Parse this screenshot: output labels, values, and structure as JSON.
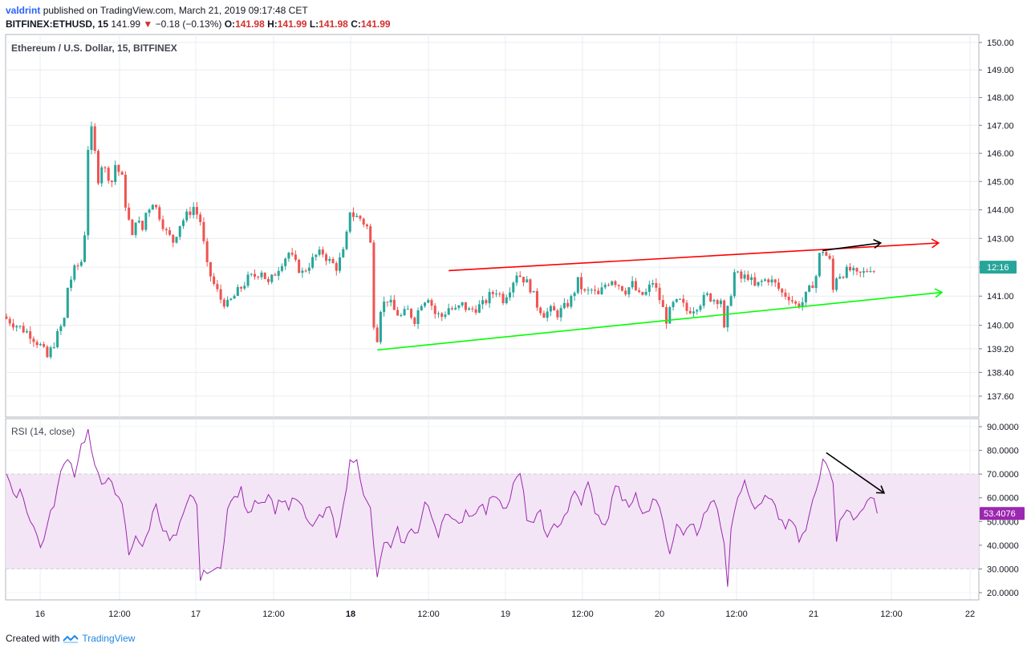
{
  "header": {
    "user": "valdrint",
    "published": "published on TradingView.com, March 21, 2019 09:17:48 CET",
    "symbol": "BITFINEX:ETHUSD, 15",
    "price": "141.99",
    "change_arrow": "▼",
    "change": "−0.18 (−0.13%)",
    "o_label": "O:",
    "o": "141.98",
    "h_label": "H:",
    "h": "141.99",
    "l_label": "L:",
    "l": "141.98",
    "c_label": "C:",
    "c": "141.99"
  },
  "legend": {
    "main": "Ethereum / U.S. Dollar, 15, BITFINEX",
    "rsi": "RSI (14, close)"
  },
  "price_badge": "12:16",
  "rsi_badge": "53.4076",
  "footer": {
    "created": "Created with",
    "brand": "TradingView"
  },
  "colors": {
    "up": "#26a69a",
    "down": "#ef5350",
    "rsi_line": "#9c27b0",
    "rsi_band": "#f3e5f5",
    "resistance": "#ff0000",
    "support": "#00ff00",
    "arrow": "#000000",
    "grid": "#e9ecf2"
  },
  "chart_data": {
    "type": "candlestick",
    "price_axis": {
      "ticks": [
        "150.00",
        "149.00",
        "148.00",
        "147.00",
        "146.00",
        "145.00",
        "144.00",
        "143.00",
        "142.00",
        "141.00",
        "140.00",
        "139.20",
        "138.40",
        "137.60"
      ],
      "scale": "log"
    },
    "rsi_axis": {
      "ticks": [
        "90.0000",
        "80.0000",
        "70.0000",
        "60.0000",
        "50.0000",
        "40.0000",
        "30.0000",
        "20.0000"
      ],
      "upper_band": 70,
      "lower_band": 30
    },
    "x_ticks": [
      "16",
      "12:00",
      "17",
      "12:00",
      "18",
      "12:00",
      "19",
      "12:00",
      "20",
      "12:00",
      "21",
      "12:00",
      "22"
    ],
    "bold_x_ticks": [
      "18"
    ],
    "price_path": [
      [
        0,
        140.3
      ],
      [
        4,
        140.0
      ],
      [
        8,
        139.7
      ],
      [
        11,
        139.3
      ],
      [
        13,
        138.9
      ],
      [
        15,
        139.4
      ],
      [
        18,
        140.2
      ],
      [
        19,
        141.3
      ],
      [
        21,
        141.9
      ],
      [
        23,
        142.2
      ],
      [
        24,
        143.2
      ],
      [
        25,
        146.2
      ],
      [
        26,
        146.8
      ],
      [
        27,
        146.0
      ],
      [
        28,
        145.1
      ],
      [
        29,
        145.6
      ],
      [
        31,
        145.2
      ],
      [
        32,
        145.0
      ],
      [
        33,
        145.6
      ],
      [
        35,
        145.1
      ],
      [
        36,
        144.2
      ],
      [
        38,
        143.0
      ],
      [
        39,
        143.7
      ],
      [
        41,
        143.3
      ],
      [
        42,
        143.9
      ],
      [
        44,
        144.3
      ],
      [
        46,
        143.8
      ],
      [
        48,
        143.2
      ],
      [
        50,
        142.9
      ],
      [
        52,
        143.5
      ],
      [
        54,
        143.8
      ],
      [
        56,
        144.1
      ],
      [
        58,
        143.6
      ],
      [
        60,
        142.0
      ],
      [
        62,
        141.4
      ],
      [
        64,
        140.9
      ],
      [
        66,
        140.7
      ],
      [
        68,
        141.0
      ],
      [
        70,
        141.3
      ],
      [
        72,
        141.6
      ],
      [
        74,
        141.7
      ],
      [
        76,
        141.9
      ],
      [
        78,
        141.4
      ],
      [
        80,
        141.8
      ],
      [
        82,
        142.2
      ],
      [
        84,
        142.5
      ],
      [
        86,
        142.1
      ],
      [
        88,
        141.8
      ],
      [
        90,
        142.1
      ],
      [
        92,
        142.4
      ],
      [
        94,
        142.5
      ],
      [
        96,
        142.2
      ],
      [
        98,
        142.0
      ],
      [
        100,
        142.5
      ],
      [
        101,
        143.1
      ],
      [
        102,
        144.0
      ],
      [
        103,
        143.8
      ],
      [
        105,
        143.7
      ],
      [
        107,
        143.4
      ],
      [
        108,
        142.8
      ],
      [
        109,
        140.1
      ],
      [
        110,
        139.6
      ],
      [
        111,
        140.6
      ],
      [
        113,
        140.9
      ],
      [
        115,
        140.5
      ],
      [
        117,
        140.3
      ],
      [
        119,
        140.5
      ],
      [
        121,
        140.2
      ],
      [
        123,
        140.8
      ],
      [
        125,
        141.0
      ],
      [
        127,
        140.4
      ],
      [
        129,
        140.3
      ],
      [
        131,
        140.6
      ],
      [
        133,
        140.5
      ],
      [
        135,
        140.7
      ],
      [
        137,
        140.5
      ],
      [
        139,
        140.6
      ],
      [
        141,
        140.7
      ],
      [
        143,
        141.0
      ],
      [
        145,
        141.2
      ],
      [
        147,
        140.9
      ],
      [
        149,
        141.3
      ],
      [
        151,
        141.8
      ],
      [
        153,
        141.6
      ],
      [
        155,
        141.3
      ],
      [
        157,
        140.7
      ],
      [
        159,
        140.4
      ],
      [
        161,
        140.5
      ],
      [
        163,
        140.4
      ],
      [
        165,
        140.6
      ],
      [
        167,
        140.9
      ],
      [
        169,
        141.5
      ],
      [
        171,
        141.1
      ],
      [
        173,
        141.2
      ],
      [
        175,
        141.0
      ],
      [
        177,
        141.4
      ],
      [
        179,
        141.6
      ],
      [
        181,
        141.4
      ],
      [
        183,
        141.2
      ],
      [
        185,
        141.4
      ],
      [
        187,
        141.0
      ],
      [
        189,
        141.1
      ],
      [
        191,
        141.5
      ],
      [
        193,
        140.9
      ],
      [
        195,
        140.2
      ],
      [
        197,
        140.7
      ],
      [
        199,
        140.8
      ],
      [
        201,
        140.5
      ],
      [
        203,
        140.6
      ],
      [
        205,
        140.8
      ],
      [
        207,
        141.0
      ],
      [
        209,
        140.9
      ],
      [
        211,
        140.9
      ],
      [
        212,
        139.8
      ],
      [
        213,
        140.5
      ],
      [
        215,
        141.8
      ],
      [
        217,
        141.6
      ],
      [
        219,
        141.7
      ],
      [
        221,
        141.3
      ],
      [
        223,
        141.5
      ],
      [
        225,
        141.6
      ],
      [
        227,
        141.4
      ],
      [
        229,
        141.1
      ],
      [
        231,
        141.0
      ],
      [
        233,
        140.7
      ],
      [
        235,
        140.8
      ],
      [
        237,
        141.2
      ],
      [
        239,
        141.7
      ],
      [
        240,
        142.4
      ],
      [
        241,
        142.6
      ],
      [
        243,
        142.2
      ],
      [
        244,
        141.2
      ],
      [
        245,
        141.7
      ],
      [
        247,
        141.8
      ],
      [
        249,
        141.9
      ],
      [
        251,
        141.7
      ],
      [
        253,
        141.8
      ],
      [
        255,
        142.0
      ],
      [
        256,
        141.9
      ]
    ],
    "rsi_path": [
      [
        0,
        70
      ],
      [
        2,
        60
      ],
      [
        4,
        64
      ],
      [
        6,
        55
      ],
      [
        8,
        48
      ],
      [
        10,
        39
      ],
      [
        12,
        48
      ],
      [
        14,
        58
      ],
      [
        16,
        70
      ],
      [
        18,
        78
      ],
      [
        20,
        70
      ],
      [
        22,
        82
      ],
      [
        24,
        88
      ],
      [
        26,
        72
      ],
      [
        28,
        66
      ],
      [
        30,
        70
      ],
      [
        32,
        60
      ],
      [
        34,
        58
      ],
      [
        36,
        36
      ],
      [
        38,
        45
      ],
      [
        40,
        38
      ],
      [
        42,
        48
      ],
      [
        44,
        58
      ],
      [
        46,
        47
      ],
      [
        48,
        42
      ],
      [
        50,
        44
      ],
      [
        52,
        52
      ],
      [
        54,
        60
      ],
      [
        56,
        58
      ],
      [
        57,
        25
      ],
      [
        59,
        30
      ],
      [
        61,
        28
      ],
      [
        63,
        32
      ],
      [
        65,
        55
      ],
      [
        67,
        60
      ],
      [
        69,
        63
      ],
      [
        71,
        52
      ],
      [
        73,
        60
      ],
      [
        75,
        58
      ],
      [
        77,
        62
      ],
      [
        79,
        55
      ],
      [
        81,
        60
      ],
      [
        83,
        56
      ],
      [
        85,
        60
      ],
      [
        87,
        55
      ],
      [
        89,
        48
      ],
      [
        91,
        50
      ],
      [
        93,
        52
      ],
      [
        95,
        56
      ],
      [
        97,
        45
      ],
      [
        99,
        55
      ],
      [
        101,
        75
      ],
      [
        103,
        78
      ],
      [
        105,
        60
      ],
      [
        107,
        55
      ],
      [
        109,
        25
      ],
      [
        111,
        42
      ],
      [
        113,
        38
      ],
      [
        115,
        46
      ],
      [
        117,
        40
      ],
      [
        119,
        48
      ],
      [
        121,
        45
      ],
      [
        123,
        58
      ],
      [
        125,
        52
      ],
      [
        127,
        45
      ],
      [
        129,
        55
      ],
      [
        131,
        50
      ],
      [
        133,
        48
      ],
      [
        135,
        55
      ],
      [
        137,
        52
      ],
      [
        139,
        58
      ],
      [
        141,
        54
      ],
      [
        143,
        62
      ],
      [
        145,
        60
      ],
      [
        147,
        55
      ],
      [
        149,
        65
      ],
      [
        151,
        70
      ],
      [
        153,
        52
      ],
      [
        155,
        48
      ],
      [
        157,
        55
      ],
      [
        159,
        42
      ],
      [
        161,
        48
      ],
      [
        163,
        50
      ],
      [
        165,
        55
      ],
      [
        167,
        62
      ],
      [
        169,
        58
      ],
      [
        171,
        66
      ],
      [
        173,
        55
      ],
      [
        175,
        48
      ],
      [
        177,
        52
      ],
      [
        179,
        66
      ],
      [
        181,
        60
      ],
      [
        183,
        55
      ],
      [
        185,
        62
      ],
      [
        187,
        52
      ],
      [
        189,
        56
      ],
      [
        191,
        60
      ],
      [
        193,
        52
      ],
      [
        195,
        35
      ],
      [
        197,
        48
      ],
      [
        199,
        46
      ],
      [
        201,
        50
      ],
      [
        203,
        45
      ],
      [
        205,
        54
      ],
      [
        207,
        58
      ],
      [
        209,
        56
      ],
      [
        211,
        42
      ],
      [
        212,
        24
      ],
      [
        213,
        48
      ],
      [
        215,
        62
      ],
      [
        217,
        66
      ],
      [
        219,
        58
      ],
      [
        221,
        55
      ],
      [
        223,
        60
      ],
      [
        225,
        58
      ],
      [
        227,
        52
      ],
      [
        229,
        48
      ],
      [
        231,
        50
      ],
      [
        233,
        42
      ],
      [
        235,
        46
      ],
      [
        237,
        58
      ],
      [
        239,
        68
      ],
      [
        240,
        78
      ],
      [
        241,
        76
      ],
      [
        243,
        68
      ],
      [
        244,
        40
      ],
      [
        245,
        52
      ],
      [
        247,
        56
      ],
      [
        249,
        50
      ],
      [
        251,
        54
      ],
      [
        253,
        60
      ],
      [
        255,
        58
      ],
      [
        256,
        53.4
      ]
    ],
    "resistance_line": {
      "from": [
        130,
        141.88
      ],
      "to": [
        274,
        142.84
      ]
    },
    "support_line": {
      "from": [
        109,
        139.16
      ],
      "to": [
        275,
        141.13
      ]
    },
    "arrows": {
      "price_arrow": {
        "from": [
          240,
          142.58
        ],
        "to": [
          257,
          142.84
        ]
      },
      "rsi_arrow": {
        "from": [
          241,
          79
        ],
        "to": [
          258,
          62
        ]
      }
    }
  }
}
